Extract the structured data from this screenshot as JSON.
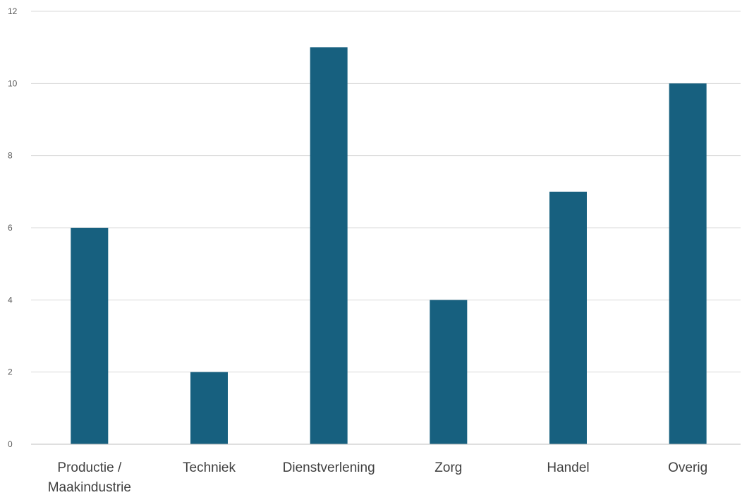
{
  "chart_data": {
    "type": "bar",
    "categories": [
      [
        "Productie /",
        "Maakindustrie"
      ],
      [
        "Techniek"
      ],
      [
        "Dienstverlening"
      ],
      [
        "Zorg"
      ],
      [
        "Handel"
      ],
      [
        "Overig"
      ]
    ],
    "values": [
      6,
      2,
      11,
      4,
      7,
      10
    ],
    "yticks": [
      "0",
      "2",
      "4",
      "6",
      "8",
      "10",
      "12"
    ],
    "ylim": [
      0,
      12
    ],
    "grid": true,
    "legend": "none",
    "bar_color": "#17607f",
    "title": "",
    "xlabel": "",
    "ylabel": ""
  }
}
